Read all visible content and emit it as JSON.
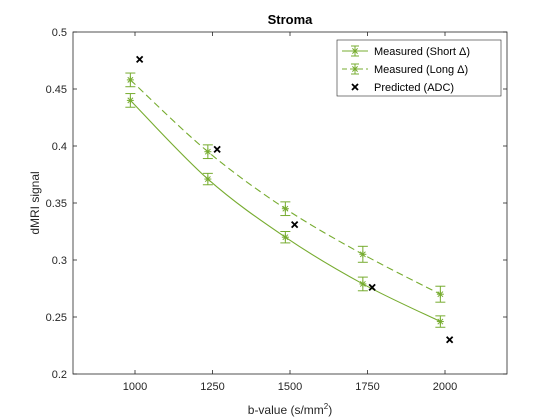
{
  "chart_data": {
    "type": "line",
    "title": "Stroma",
    "xlabel": "b-value (s/mm",
    "xlabel_sup": "2",
    "xlabel_end": ")",
    "ylabel": "dMRI signal",
    "xlim": [
      800,
      2200
    ],
    "ylim": [
      0.2,
      0.5
    ],
    "xticks": [
      1000,
      1250,
      1500,
      1750,
      2000
    ],
    "xtick_labels": [
      "1000",
      "1250",
      "1500",
      "1750",
      "2000"
    ],
    "yticks": [
      0.2,
      0.25,
      0.3,
      0.35,
      0.4,
      0.45,
      0.5
    ],
    "ytick_labels": [
      "0.2",
      "0.25",
      "0.3",
      "0.35",
      "0.4",
      "0.45",
      "0.5"
    ],
    "grid": false,
    "legend_position": "top-right",
    "series": [
      {
        "name": "Measured (Short Δ)",
        "style": "solid-errorbar-star",
        "color": "#77AC30",
        "x": [
          985,
          1235,
          1485,
          1735,
          1985
        ],
        "y": [
          0.44,
          0.371,
          0.32,
          0.279,
          0.246
        ],
        "err": [
          0.006,
          0.005,
          0.005,
          0.006,
          0.005
        ]
      },
      {
        "name": "Measured (Long Δ)",
        "style": "dashed-errorbar-star",
        "color": "#77AC30",
        "x": [
          985,
          1235,
          1485,
          1735,
          1985
        ],
        "y": [
          0.458,
          0.395,
          0.345,
          0.305,
          0.27
        ],
        "err": [
          0.006,
          0.006,
          0.006,
          0.007,
          0.007
        ]
      },
      {
        "name": "Predicted (ADC)",
        "style": "marker-x",
        "color": "#000000",
        "x": [
          1015,
          1265,
          1515,
          1765,
          2015
        ],
        "y": [
          0.476,
          0.397,
          0.331,
          0.276,
          0.23
        ]
      }
    ]
  }
}
